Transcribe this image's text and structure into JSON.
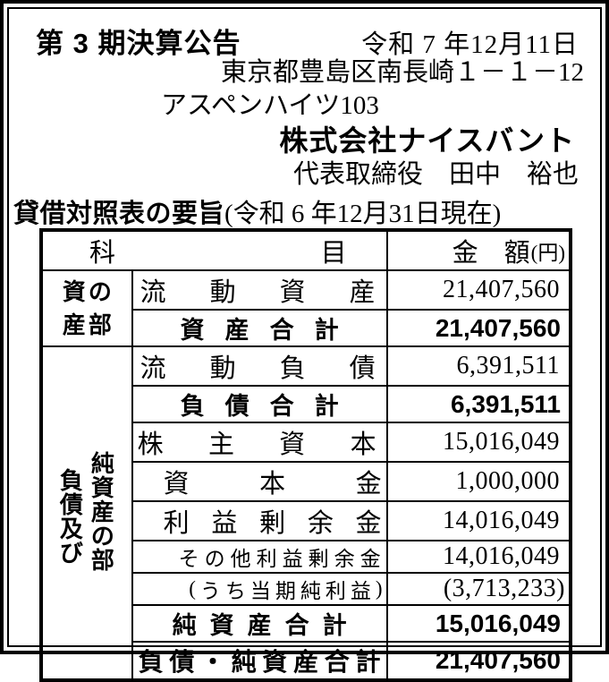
{
  "colors": {
    "ink": "#000000",
    "paper": "#ffffff"
  },
  "header": {
    "title": "第 3 期決算公告",
    "date": "令和 7 年12月11日",
    "address": "東京都豊島区南長崎１－１－12",
    "building": "アスペンハイツ103",
    "company": "株式会社ナイスバント",
    "representative": "代表取締役　田中　裕也",
    "bs_title": "貸借対照表の要旨",
    "bs_asof": "(令和 6 年12月31日現在)"
  },
  "table": {
    "columns": {
      "subject": "科目",
      "amount": "金　額",
      "amount_unit": "(円)"
    },
    "section_labels": {
      "assets_line1": "資の",
      "assets_line2": "産部",
      "liabilities_left": "負債及び",
      "liabilities_right": "純資産の部"
    },
    "rows": [
      {
        "item": "流動資産",
        "amount": "21,407,560"
      },
      {
        "item": "資産合計",
        "amount": "21,407,560"
      },
      {
        "item": "流動負債",
        "amount": "6,391,511"
      },
      {
        "item": "負債合計",
        "amount": "6,391,511"
      },
      {
        "item": "株主資本",
        "amount": "15,016,049"
      },
      {
        "item": "資本金",
        "amount": "1,000,000"
      },
      {
        "item": "利益剰余金",
        "amount": "14,016,049"
      },
      {
        "item": "その他利益剰余金",
        "amount": "14,016,049"
      },
      {
        "item": "(うち当期純利益)",
        "amount": "(3,713,233)"
      },
      {
        "item": "純資産合計",
        "amount": "15,016,049"
      },
      {
        "item": "負債・純資産合計",
        "amount": "21,407,560"
      }
    ]
  }
}
